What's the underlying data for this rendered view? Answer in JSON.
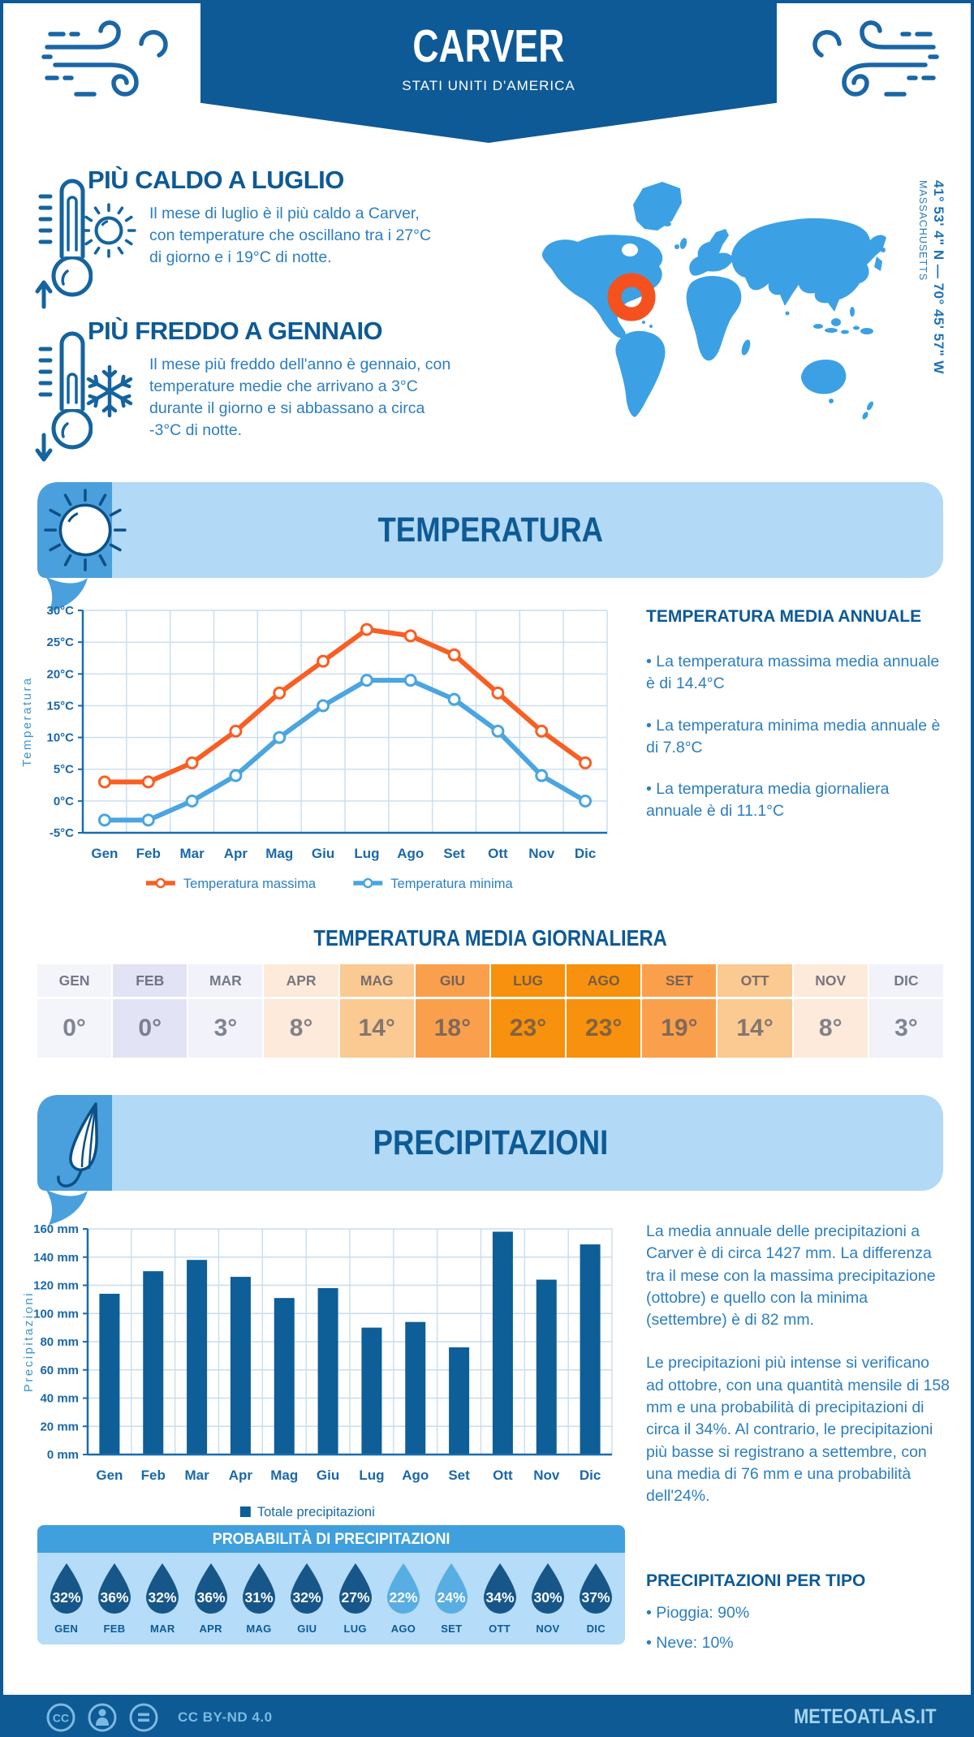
{
  "page": {
    "location": "CARVER",
    "country": "STATI UNITI D'AMERICA",
    "accent_dark": "#0d5a96",
    "accent_light": "#b2d9f6"
  },
  "map": {
    "coordinates": "41° 53' 4\" N — 70° 45' 57\" W",
    "region": "MASSACHUSETTS",
    "land_color": "#3ba1e4",
    "marker_color": "#f4511e"
  },
  "highlights": {
    "hot_title": "PIÙ CALDO A LUGLIO",
    "hot_text": "Il mese di luglio è il più caldo a Carver, con temperature che oscillano tra i 27°C di giorno e i 19°C di notte.",
    "cold_title": "PIÙ FREDDO A GENNAIO",
    "cold_text": "Il mese più freddo dell'anno è gennaio, con temperature medie che arrivano a 3°C durante il giorno e si abbassano a circa -3°C di notte."
  },
  "temperature": {
    "section_title": "TEMPERATURA",
    "annual_title": "TEMPERATURA MEDIA ANNUALE",
    "annual_bullets": [
      "La temperatura massima media annuale è di 14.4°C",
      "La temperatura minima media annuale è di 7.8°C",
      "La temperatura media giornaliera annuale è di 11.1°C"
    ],
    "daily_title": "TEMPERATURA MEDIA GIORNALIERA",
    "daily": {
      "months": [
        "GEN",
        "FEB",
        "MAR",
        "APR",
        "MAG",
        "GIU",
        "LUG",
        "AGO",
        "SET",
        "OTT",
        "NOV",
        "DIC"
      ],
      "values": [
        "0°",
        "0°",
        "3°",
        "8°",
        "14°",
        "18°",
        "23°",
        "23°",
        "19°",
        "14°",
        "8°",
        "3°"
      ],
      "colors": [
        "#f4f4fb",
        "#e3e3f6",
        "#f1f2fa",
        "#fdeada",
        "#fbc992",
        "#faa04d",
        "#f8910d",
        "#f8910d",
        "#faa04d",
        "#fbc992",
        "#fdeada",
        "#f1f2fa"
      ]
    }
  },
  "precipitation": {
    "section_title": "PRECIPITAZIONI",
    "paragraph1": "La media annuale delle precipitazioni a Carver è di circa 1427 mm. La differenza tra il mese con la massima precipitazione (ottobre) e quello con la minima (settembre) è di 82 mm.",
    "paragraph2": "Le precipitazioni più intense si verificano ad ottobre, con una quantità mensile di 158 mm e una probabilità di precipitazioni di circa il 34%. Al contrario, le precipitazioni più basse si registrano a settembre, con una media di 76 mm e una probabilità dell'24%.",
    "probability_title": "PROBABILITÀ DI PRECIPITAZIONI",
    "probability": [
      {
        "month": "GEN",
        "value": "32%",
        "shade": "dark"
      },
      {
        "month": "FEB",
        "value": "36%",
        "shade": "dark"
      },
      {
        "month": "MAR",
        "value": "32%",
        "shade": "dark"
      },
      {
        "month": "APR",
        "value": "36%",
        "shade": "dark"
      },
      {
        "month": "MAG",
        "value": "31%",
        "shade": "dark"
      },
      {
        "month": "GIU",
        "value": "32%",
        "shade": "dark"
      },
      {
        "month": "LUG",
        "value": "27%",
        "shade": "dark"
      },
      {
        "month": "AGO",
        "value": "22%",
        "shade": "light"
      },
      {
        "month": "SET",
        "value": "24%",
        "shade": "light"
      },
      {
        "month": "OTT",
        "value": "34%",
        "shade": "dark"
      },
      {
        "month": "NOV",
        "value": "30%",
        "shade": "dark"
      },
      {
        "month": "DIC",
        "value": "37%",
        "shade": "dark"
      }
    ],
    "drop_dark": "#175689",
    "drop_light": "#58ade2",
    "types_title": "PRECIPITAZIONI PER TIPO",
    "types": [
      "Pioggia: 90%",
      "Neve: 10%"
    ]
  },
  "footer": {
    "license": "CC BY-ND 4.0",
    "brand": "METEOATLAS.IT"
  },
  "chart_data": [
    {
      "type": "line",
      "title": "",
      "categories": [
        "Gen",
        "Feb",
        "Mar",
        "Apr",
        "Mag",
        "Giu",
        "Lug",
        "Ago",
        "Set",
        "Ott",
        "Nov",
        "Dic"
      ],
      "series": [
        {
          "name": "Temperatura massima",
          "color": "#f95e22",
          "values": [
            3,
            3,
            6,
            11,
            17,
            22,
            27,
            26,
            23,
            17,
            11,
            6
          ]
        },
        {
          "name": "Temperatura minima",
          "color": "#4aa5e0",
          "values": [
            -3,
            -3,
            0,
            4,
            10,
            15,
            19,
            19,
            16,
            11,
            4,
            0
          ]
        }
      ],
      "ylabel": "Temperatura",
      "xlabel": "",
      "ylim": [
        -5,
        30
      ],
      "ytick_step": 5,
      "ytick_suffix": "°C",
      "grid": true,
      "legend_position": "bottom"
    },
    {
      "type": "bar",
      "title": "",
      "categories": [
        "Gen",
        "Feb",
        "Mar",
        "Apr",
        "Mag",
        "Giu",
        "Lug",
        "Ago",
        "Set",
        "Ott",
        "Nov",
        "Dic"
      ],
      "series": [
        {
          "name": "Totale precipitazioni",
          "color": "#0e5e98",
          "values": [
            114,
            130,
            138,
            126,
            111,
            118,
            90,
            94,
            76,
            158,
            124,
            149
          ]
        }
      ],
      "ylabel": "Precipitazioni",
      "xlabel": "",
      "ylim": [
        0,
        160
      ],
      "ytick_step": 20,
      "ytick_suffix": " mm",
      "grid": true,
      "legend_position": "bottom"
    }
  ]
}
